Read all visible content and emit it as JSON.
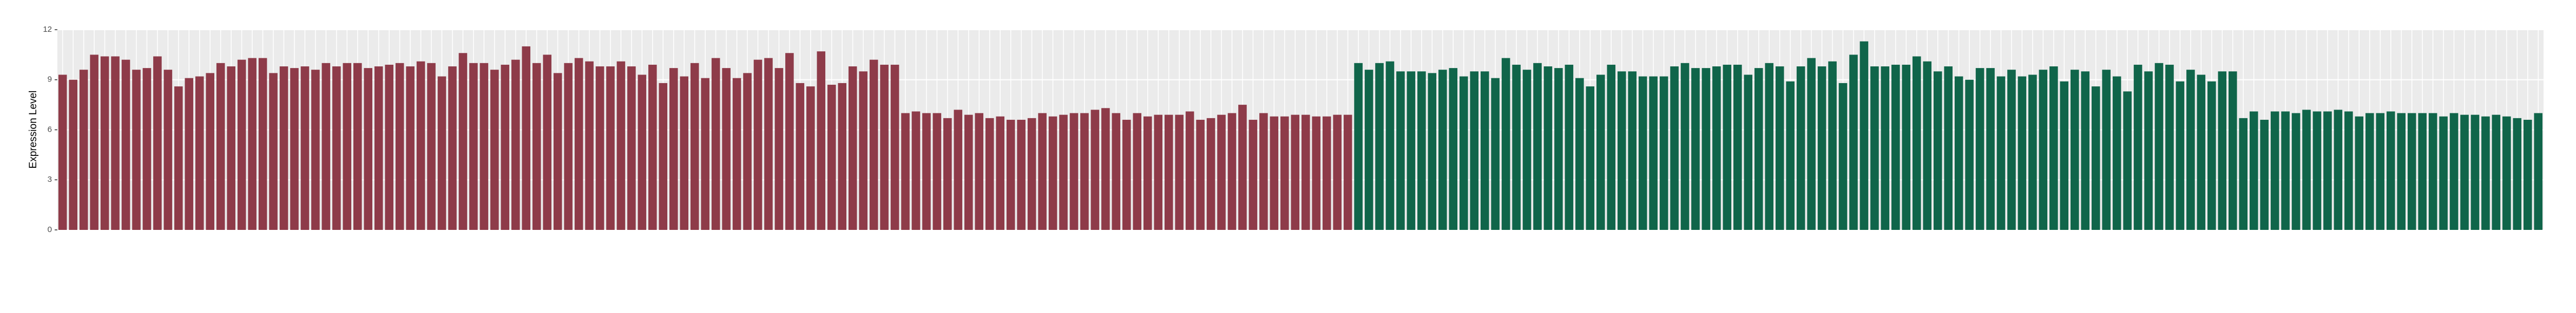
{
  "chart_data": {
    "type": "bar",
    "y_label": "Expression Level",
    "ylim": [
      0,
      12
    ],
    "yticks": [
      0,
      3,
      6,
      9,
      12
    ],
    "grid": true,
    "background": "#ebebeb",
    "series": [
      {
        "color": "#8e3b49",
        "values": [
          9.3,
          9.0,
          9.6,
          10.5,
          10.4,
          10.4,
          10.2,
          9.6,
          9.7,
          10.4,
          9.6,
          8.6,
          9.1,
          9.2,
          9.4,
          10.0,
          9.8,
          10.2,
          10.3,
          10.3,
          9.4,
          9.8,
          9.7,
          9.8,
          9.6,
          10.0,
          9.8,
          10.0,
          10.0,
          9.7,
          9.8,
          9.9,
          10.0,
          9.8,
          10.1,
          10.0,
          9.2,
          9.8,
          10.6,
          10.0,
          10.0,
          9.6,
          9.9,
          10.2,
          11.0,
          10.0,
          10.5,
          9.4,
          10.0,
          10.3,
          10.1,
          9.8,
          9.8,
          10.1,
          9.8,
          9.3,
          9.9,
          8.8,
          9.7,
          9.2,
          10.0,
          9.1,
          10.3,
          9.7,
          9.1,
          9.4,
          10.2,
          10.3,
          9.7,
          10.6,
          8.8,
          8.6,
          10.7,
          8.7,
          8.8,
          9.8,
          9.5,
          10.2,
          9.9,
          9.9,
          7.0,
          7.1,
          7.0,
          7.0,
          6.7,
          7.2,
          6.9,
          7.0,
          6.7,
          6.8,
          6.6,
          6.6,
          6.7,
          7.0,
          6.8,
          6.9,
          7.0,
          7.0,
          7.2,
          7.3,
          7.0,
          6.6,
          7.0,
          6.8,
          6.9,
          6.9,
          6.9,
          7.1,
          6.6,
          6.7,
          6.9,
          7.0,
          7.5,
          6.6,
          7.0,
          6.8,
          6.8,
          6.9,
          6.9,
          6.8,
          6.8,
          6.9,
          6.9
        ]
      },
      {
        "color": "#10654a",
        "values": [
          10.0,
          9.6,
          10.0,
          10.1,
          9.5,
          9.5,
          9.5,
          9.4,
          9.6,
          9.7,
          9.2,
          9.5,
          9.5,
          9.1,
          10.3,
          9.9,
          9.6,
          10.0,
          9.8,
          9.7,
          9.9,
          9.1,
          8.6,
          9.3,
          9.9,
          9.5,
          9.5,
          9.2,
          9.2,
          9.2,
          9.8,
          10.0,
          9.7,
          9.7,
          9.8,
          9.9,
          9.9,
          9.3,
          9.7,
          10.0,
          9.8,
          8.9,
          9.8,
          10.3,
          9.8,
          10.1,
          8.8,
          10.5,
          11.3,
          9.8,
          9.8,
          9.9,
          9.9,
          10.4,
          10.1,
          9.5,
          9.8,
          9.2,
          9.0,
          9.7,
          9.7,
          9.2,
          9.6,
          9.2,
          9.3,
          9.6,
          9.8,
          8.9,
          9.6,
          9.5,
          8.6,
          9.6,
          9.2,
          8.3,
          9.9,
          9.5,
          10.0,
          9.9,
          8.9,
          9.6,
          9.3,
          8.9,
          9.5,
          9.5,
          6.7,
          7.1,
          6.6,
          7.1,
          7.1,
          7.0,
          7.2,
          7.1,
          7.1,
          7.2,
          7.1,
          6.8,
          7.0,
          7.0,
          7.1,
          7.0,
          7.0,
          7.0,
          7.0,
          6.8,
          7.0,
          6.9,
          6.9,
          6.8,
          6.9,
          6.8,
          6.7,
          6.6,
          7.0
        ]
      }
    ]
  }
}
